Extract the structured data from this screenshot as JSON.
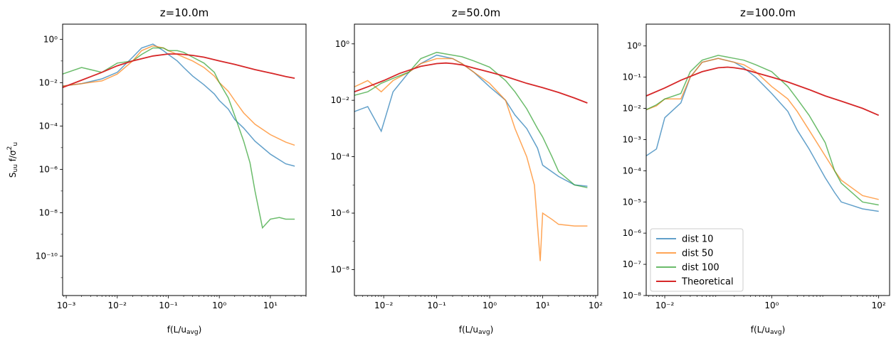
{
  "figure": {
    "background": "#ffffff"
  },
  "chart_data": [
    {
      "type": "line",
      "title": "z=10.0m",
      "xlabel": "f(L/u_avg)",
      "ylabel": "S_uu f/σ_u²",
      "xscale": "log",
      "yscale": "log",
      "xlim": [
        0.00085,
        50
      ],
      "ylim": [
        1.5e-12,
        5
      ],
      "xticks": [
        {
          "v": 0.001,
          "label": "10⁻³"
        },
        {
          "v": 0.01,
          "label": "10⁻²"
        },
        {
          "v": 0.1,
          "label": "10⁻¹"
        },
        {
          "v": 1,
          "label": "10⁰"
        },
        {
          "v": 10,
          "label": "10¹"
        }
      ],
      "yticks": [
        {
          "v": 1e-10,
          "label": "10⁻¹⁰"
        },
        {
          "v": 1e-08,
          "label": "10⁻⁸"
        },
        {
          "v": 1e-06,
          "label": "10⁻⁶"
        },
        {
          "v": 0.0001,
          "label": "10⁻⁴"
        },
        {
          "v": 0.01,
          "label": "10⁻²"
        },
        {
          "v": 1,
          "label": "10⁰"
        }
      ],
      "series": [
        {
          "name": "dist 10",
          "color": "#1f77b4",
          "opacity": 0.7,
          "x": [
            0.00085,
            0.002,
            0.005,
            0.01,
            0.02,
            0.03,
            0.05,
            0.08,
            0.1,
            0.15,
            0.2,
            0.3,
            0.5,
            0.8,
            1,
            1.5,
            2,
            3,
            5,
            10,
            20,
            30
          ],
          "y": [
            0.007,
            0.009,
            0.015,
            0.03,
            0.15,
            0.4,
            0.6,
            0.3,
            0.2,
            0.1,
            0.05,
            0.02,
            0.008,
            0.003,
            0.0015,
            0.0006,
            0.0002,
            8e-05,
            2e-05,
            5e-06,
            1.8e-06,
            1.4e-06
          ]
        },
        {
          "name": "dist 50",
          "color": "#ff7f0e",
          "opacity": 0.7,
          "x": [
            0.00085,
            0.002,
            0.005,
            0.01,
            0.02,
            0.03,
            0.05,
            0.08,
            0.1,
            0.15,
            0.2,
            0.3,
            0.5,
            0.8,
            1,
            1.5,
            2,
            3,
            5,
            10,
            20,
            30
          ],
          "y": [
            0.007,
            0.009,
            0.012,
            0.025,
            0.1,
            0.3,
            0.5,
            0.4,
            0.3,
            0.2,
            0.15,
            0.1,
            0.05,
            0.02,
            0.01,
            0.004,
            0.0015,
            0.0004,
            0.00012,
            4e-05,
            1.8e-05,
            1.3e-05
          ]
        },
        {
          "name": "dist 100",
          "color": "#2ca02c",
          "opacity": 0.7,
          "x": [
            0.00085,
            0.002,
            0.005,
            0.01,
            0.02,
            0.03,
            0.05,
            0.08,
            0.1,
            0.15,
            0.2,
            0.3,
            0.5,
            0.8,
            1,
            1.5,
            2,
            3,
            4,
            5,
            7,
            10,
            15,
            20,
            30
          ],
          "y": [
            0.025,
            0.05,
            0.03,
            0.08,
            0.1,
            0.2,
            0.4,
            0.4,
            0.3,
            0.3,
            0.25,
            0.15,
            0.08,
            0.03,
            0.01,
            0.002,
            0.0003,
            2e-05,
            2e-06,
            1e-07,
            2e-09,
            5e-09,
            6e-09,
            5e-09,
            5e-09
          ]
        },
        {
          "name": "Theoretical",
          "color": "#d62728",
          "opacity": 1,
          "x": [
            0.00085,
            0.002,
            0.005,
            0.01,
            0.02,
            0.05,
            0.1,
            0.15,
            0.2,
            0.3,
            0.5,
            1,
            2,
            5,
            10,
            20,
            30
          ],
          "y": [
            0.006,
            0.013,
            0.03,
            0.06,
            0.1,
            0.17,
            0.21,
            0.21,
            0.2,
            0.18,
            0.15,
            0.1,
            0.07,
            0.04,
            0.028,
            0.019,
            0.016
          ]
        }
      ]
    },
    {
      "type": "line",
      "title": "z=50.0m",
      "xlabel": "f(L/u_avg)",
      "ylabel": "",
      "xscale": "log",
      "yscale": "log",
      "xlim": [
        0.0028,
        110
      ],
      "ylim": [
        1.2e-09,
        5
      ],
      "xticks": [
        {
          "v": 0.01,
          "label": "10⁻²"
        },
        {
          "v": 0.1,
          "label": "10⁻¹"
        },
        {
          "v": 1,
          "label": "10⁰"
        },
        {
          "v": 10,
          "label": "10¹"
        },
        {
          "v": 100,
          "label": "10²"
        }
      ],
      "yticks": [
        {
          "v": 1e-08,
          "label": "10⁻⁸"
        },
        {
          "v": 1e-06,
          "label": "10⁻⁶"
        },
        {
          "v": 0.0001,
          "label": "10⁻⁴"
        },
        {
          "v": 0.01,
          "label": "10⁻²"
        },
        {
          "v": 1,
          "label": "10⁰"
        }
      ],
      "series": [
        {
          "name": "dist 10",
          "color": "#1f77b4",
          "opacity": 0.7,
          "x": [
            0.0028,
            0.005,
            0.009,
            0.015,
            0.03,
            0.05,
            0.1,
            0.2,
            0.3,
            0.5,
            1,
            2,
            3,
            5,
            8,
            10,
            20,
            40,
            70
          ],
          "y": [
            0.004,
            0.006,
            0.0008,
            0.02,
            0.1,
            0.2,
            0.4,
            0.3,
            0.2,
            0.1,
            0.03,
            0.01,
            0.003,
            0.001,
            0.0002,
            5e-05,
            2e-05,
            1e-05,
            9e-06
          ]
        },
        {
          "name": "dist 50",
          "color": "#ff7f0e",
          "opacity": 0.7,
          "x": [
            0.0028,
            0.005,
            0.009,
            0.015,
            0.03,
            0.05,
            0.1,
            0.2,
            0.3,
            0.5,
            1,
            2,
            3,
            5,
            7,
            9,
            10,
            15,
            20,
            40,
            70
          ],
          "y": [
            0.03,
            0.05,
            0.02,
            0.05,
            0.1,
            0.2,
            0.3,
            0.3,
            0.2,
            0.1,
            0.04,
            0.01,
            0.001,
            0.0001,
            1e-05,
            2e-08,
            1e-06,
            6e-07,
            4e-07,
            3.5e-07,
            3.5e-07
          ]
        },
        {
          "name": "dist 100",
          "color": "#2ca02c",
          "opacity": 0.7,
          "x": [
            0.0028,
            0.005,
            0.009,
            0.015,
            0.03,
            0.05,
            0.1,
            0.2,
            0.3,
            0.5,
            1,
            2,
            3,
            5,
            8,
            10,
            15,
            20,
            40,
            70
          ],
          "y": [
            0.015,
            0.02,
            0.04,
            0.06,
            0.1,
            0.3,
            0.5,
            0.4,
            0.35,
            0.25,
            0.15,
            0.05,
            0.02,
            0.005,
            0.001,
            0.0005,
            0.0001,
            3e-05,
            1e-05,
            8e-06
          ]
        },
        {
          "name": "Theoretical",
          "color": "#d62728",
          "opacity": 1,
          "x": [
            0.0028,
            0.005,
            0.01,
            0.02,
            0.05,
            0.1,
            0.15,
            0.2,
            0.3,
            0.5,
            1,
            2,
            5,
            10,
            20,
            40,
            70
          ],
          "y": [
            0.02,
            0.03,
            0.05,
            0.09,
            0.16,
            0.2,
            0.21,
            0.2,
            0.18,
            0.14,
            0.1,
            0.07,
            0.04,
            0.028,
            0.019,
            0.012,
            0.008
          ]
        }
      ]
    },
    {
      "type": "line",
      "title": "z=100.0m",
      "xlabel": "f(L/u_avg)",
      "ylabel": "",
      "xscale": "log",
      "yscale": "log",
      "xlim": [
        0.0045,
        160
      ],
      "ylim": [
        1e-08,
        5
      ],
      "xticks": [
        {
          "v": 0.01,
          "label": "10⁻²"
        },
        {
          "v": 1,
          "label": "10⁰"
        },
        {
          "v": 100,
          "label": "10²"
        }
      ],
      "yticks": [
        {
          "v": 1e-08,
          "label": "10⁻⁸"
        },
        {
          "v": 1e-07,
          "label": "10⁻⁷"
        },
        {
          "v": 1e-06,
          "label": "10⁻⁶"
        },
        {
          "v": 1e-05,
          "label": "10⁻⁵"
        },
        {
          "v": 0.0001,
          "label": "10⁻⁴"
        },
        {
          "v": 0.001,
          "label": "10⁻³"
        },
        {
          "v": 0.01,
          "label": "10⁻²"
        },
        {
          "v": 0.1,
          "label": "10⁻¹"
        },
        {
          "v": 1,
          "label": "10⁰"
        }
      ],
      "legend": {
        "position": "lower-left",
        "entries": [
          "dist 10",
          "dist 50",
          "dist 100",
          "Theoretical"
        ]
      },
      "series": [
        {
          "name": "dist 10",
          "color": "#1f77b4",
          "opacity": 0.7,
          "x": [
            0.0045,
            0.007,
            0.01,
            0.02,
            0.03,
            0.05,
            0.1,
            0.2,
            0.3,
            0.5,
            1,
            2,
            3,
            5,
            10,
            15,
            20,
            50,
            100
          ],
          "y": [
            0.0003,
            0.0005,
            0.005,
            0.015,
            0.1,
            0.3,
            0.4,
            0.3,
            0.2,
            0.1,
            0.03,
            0.008,
            0.002,
            0.0005,
            6e-05,
            2e-05,
            1e-05,
            6e-06,
            5e-06
          ]
        },
        {
          "name": "dist 50",
          "color": "#ff7f0e",
          "opacity": 0.7,
          "x": [
            0.0045,
            0.007,
            0.01,
            0.02,
            0.03,
            0.05,
            0.1,
            0.2,
            0.3,
            0.5,
            1,
            2,
            3,
            5,
            10,
            15,
            20,
            50,
            100
          ],
          "y": [
            0.009,
            0.012,
            0.02,
            0.02,
            0.1,
            0.3,
            0.4,
            0.3,
            0.25,
            0.15,
            0.05,
            0.02,
            0.008,
            0.002,
            0.0003,
            0.0001,
            5e-05,
            1.6e-05,
            1.2e-05
          ]
        },
        {
          "name": "dist 100",
          "color": "#2ca02c",
          "opacity": 0.7,
          "x": [
            0.0045,
            0.007,
            0.01,
            0.02,
            0.03,
            0.05,
            0.1,
            0.2,
            0.3,
            0.5,
            1,
            2,
            3,
            5,
            10,
            15,
            20,
            50,
            100
          ],
          "y": [
            0.009,
            0.013,
            0.02,
            0.03,
            0.15,
            0.35,
            0.5,
            0.4,
            0.35,
            0.25,
            0.15,
            0.05,
            0.02,
            0.006,
            0.0008,
            0.0001,
            4e-05,
            1e-05,
            8e-06
          ]
        },
        {
          "name": "Theoretical",
          "color": "#d62728",
          "opacity": 1,
          "x": [
            0.0045,
            0.01,
            0.02,
            0.05,
            0.1,
            0.15,
            0.2,
            0.3,
            0.5,
            1,
            2,
            5,
            10,
            20,
            50,
            100
          ],
          "y": [
            0.025,
            0.045,
            0.08,
            0.15,
            0.2,
            0.21,
            0.2,
            0.18,
            0.14,
            0.1,
            0.07,
            0.04,
            0.025,
            0.017,
            0.01,
            0.006
          ]
        }
      ]
    }
  ]
}
